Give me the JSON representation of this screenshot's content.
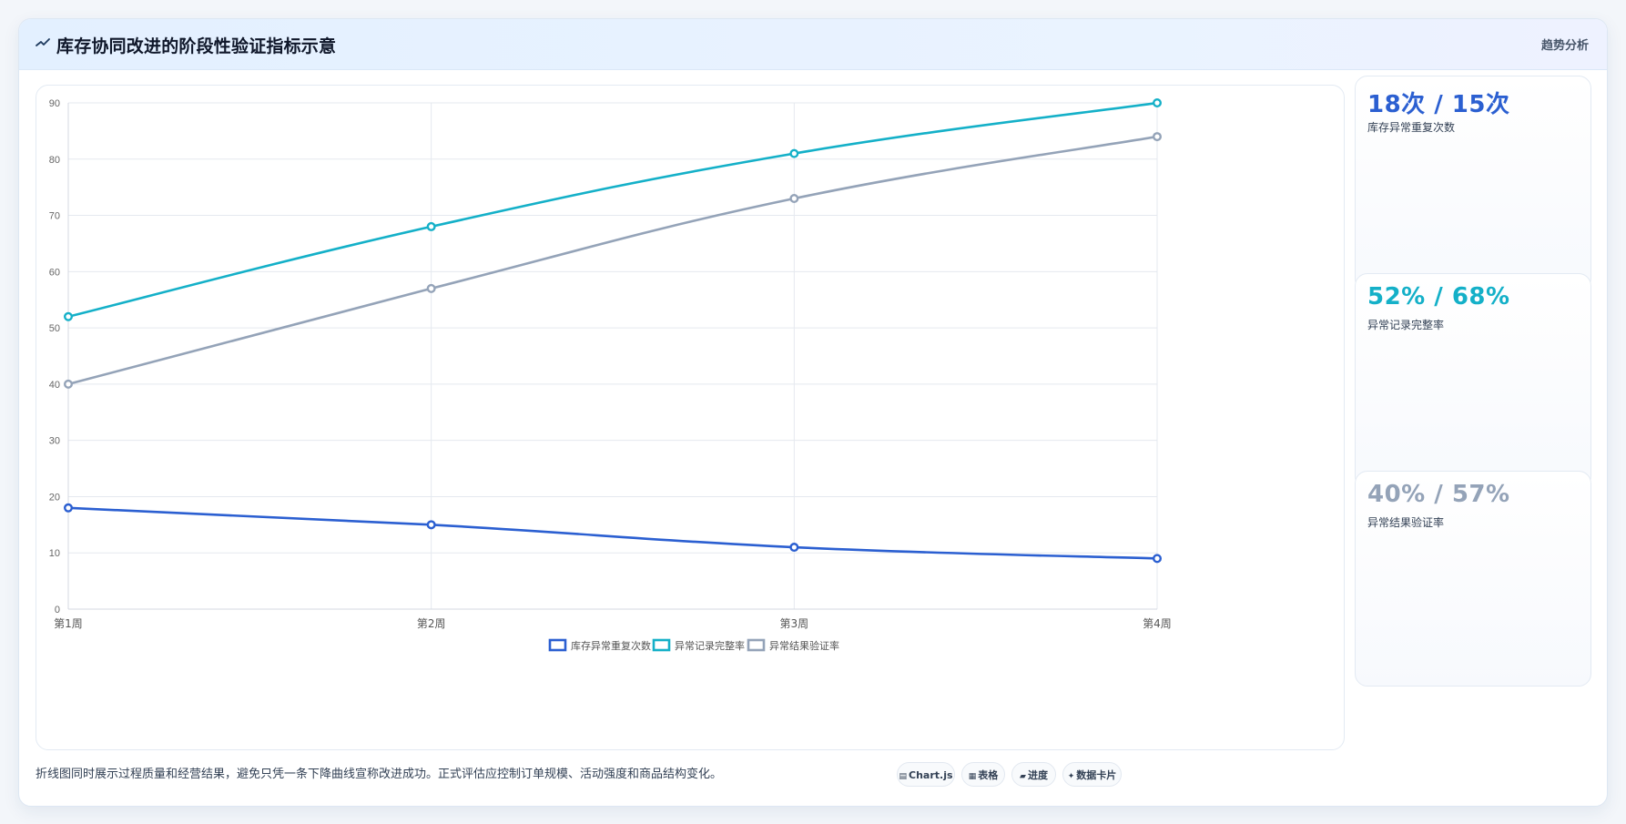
{
  "header": {
    "title_icon": "trend-line-icon",
    "title": "库存协同改进的阶段性验证指标示意",
    "tag": "趋势分析"
  },
  "chart_data": {
    "type": "line",
    "categories": [
      "第1周",
      "第2周",
      "第3周",
      "第4周"
    ],
    "ylim": [
      0,
      90
    ],
    "yticks": [
      0,
      10,
      20,
      30,
      40,
      50,
      60,
      70,
      80,
      90
    ],
    "grid": true,
    "legend_position": "bottom",
    "series": [
      {
        "name": "库存异常重复次数",
        "values": [
          18,
          15,
          11,
          9
        ],
        "color": "#2b5fd1"
      },
      {
        "name": "异常记录完整率",
        "values": [
          52,
          68,
          81,
          90
        ],
        "color": "#14b0c8"
      },
      {
        "name": "异常结果验证率",
        "values": [
          40,
          57,
          73,
          84
        ],
        "color": "#94a3b8"
      }
    ]
  },
  "metrics": [
    {
      "value": "18次 / 15次",
      "label": "库存异常重复次数",
      "color": "#2b5fd1"
    },
    {
      "value": "52% / 68%",
      "label": "异常记录完整率",
      "color": "#14b0c8"
    },
    {
      "value": "40% / 57%",
      "label": "异常结果验证率",
      "color": "#94a3b8"
    }
  ],
  "footer": {
    "note": "折线图同时展示过程质量和经营结果，避免只凭一条下降曲线宣称改进成功。正式评估应控制订单规模、活动强度和商品结构变化。",
    "pills": [
      {
        "icon": "chart-icon",
        "glyph": "▤",
        "label": "Chart.js"
      },
      {
        "icon": "table-icon",
        "glyph": "▦",
        "label": "表格"
      },
      {
        "icon": "progress-icon",
        "glyph": "▰",
        "label": "进度"
      },
      {
        "icon": "data-card-icon",
        "glyph": "✦",
        "label": "数据卡片"
      }
    ]
  }
}
